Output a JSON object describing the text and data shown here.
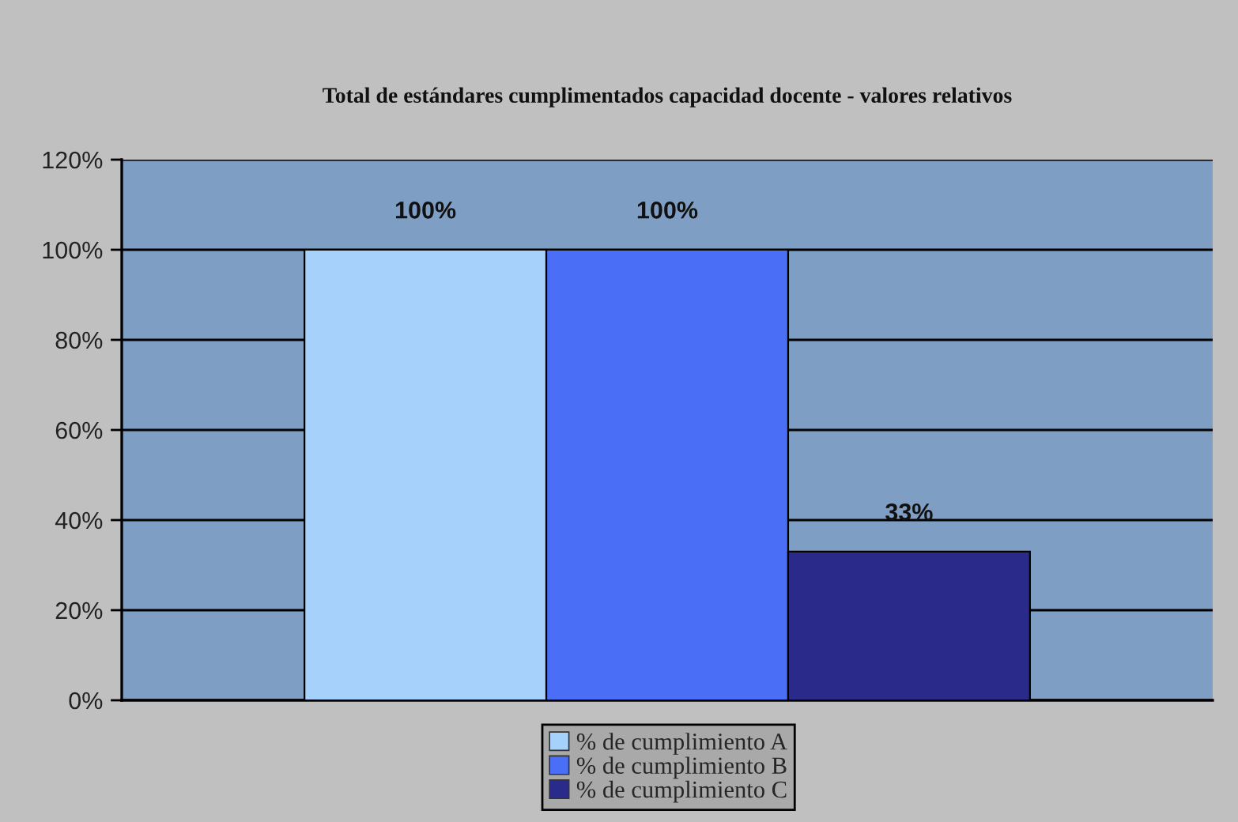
{
  "chart_data": {
    "type": "bar",
    "title": "Total de estándares cumplimentados capacidad docente - valores relativos",
    "categories": [
      null
    ],
    "series": [
      {
        "name": "% de cumplimiento A",
        "color": "#a6d1fb",
        "values": [
          100
        ],
        "value_labels": [
          "100%"
        ]
      },
      {
        "name": "% de cumplimiento B",
        "color": "#4a6ef5",
        "values": [
          100
        ],
        "value_labels": [
          "100%"
        ]
      },
      {
        "name": "% de cumplimiento C",
        "color": "#2a2a8a",
        "values": [
          33
        ],
        "value_labels": [
          "33%"
        ]
      }
    ],
    "ylim": [
      0,
      120
    ],
    "yticks": [
      {
        "value": 0,
        "label": "0%"
      },
      {
        "value": 20,
        "label": "20%"
      },
      {
        "value": 40,
        "label": "40%"
      },
      {
        "value": 60,
        "label": "60%"
      },
      {
        "value": 80,
        "label": "80%"
      },
      {
        "value": 100,
        "label": "100%"
      },
      {
        "value": 120,
        "label": "120%"
      }
    ],
    "grid": "y",
    "legend": "bottom"
  }
}
